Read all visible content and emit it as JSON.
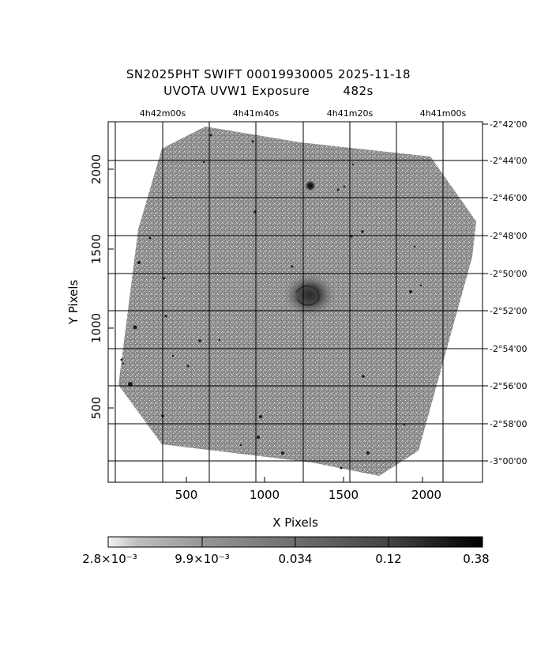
{
  "header": {
    "title_line1": "SN2025PHT SWIFT 00019930005 2025-11-18",
    "title_line2": "UVOTA UVW1 Exposure        482s"
  },
  "axes": {
    "xlabel": "X Pixels",
    "ylabel": "Y Pixels",
    "x_ticks": [
      "500",
      "1000",
      "1500",
      "2000"
    ],
    "y_ticks": [
      "500",
      "1000",
      "1500",
      "2000"
    ],
    "ra_ticks": [
      "4h42m00s",
      "4h41m40s",
      "4h41m20s",
      "4h41m00s"
    ],
    "dec_ticks": [
      "-2°42'00",
      "-2°44'00",
      "-2°46'00",
      "-2°48'00",
      "-2°50'00",
      "-2°52'00",
      "-2°54'00",
      "-2°56'00",
      "-2°58'00",
      "-3°00'00"
    ]
  },
  "colorbar": {
    "labels": [
      "2.8×10⁻³",
      "9.9×10⁻³",
      "0.034",
      "0.12",
      "0.38"
    ]
  },
  "colors": {
    "background_sky": "#8a8a8a",
    "grid": "#000000"
  }
}
